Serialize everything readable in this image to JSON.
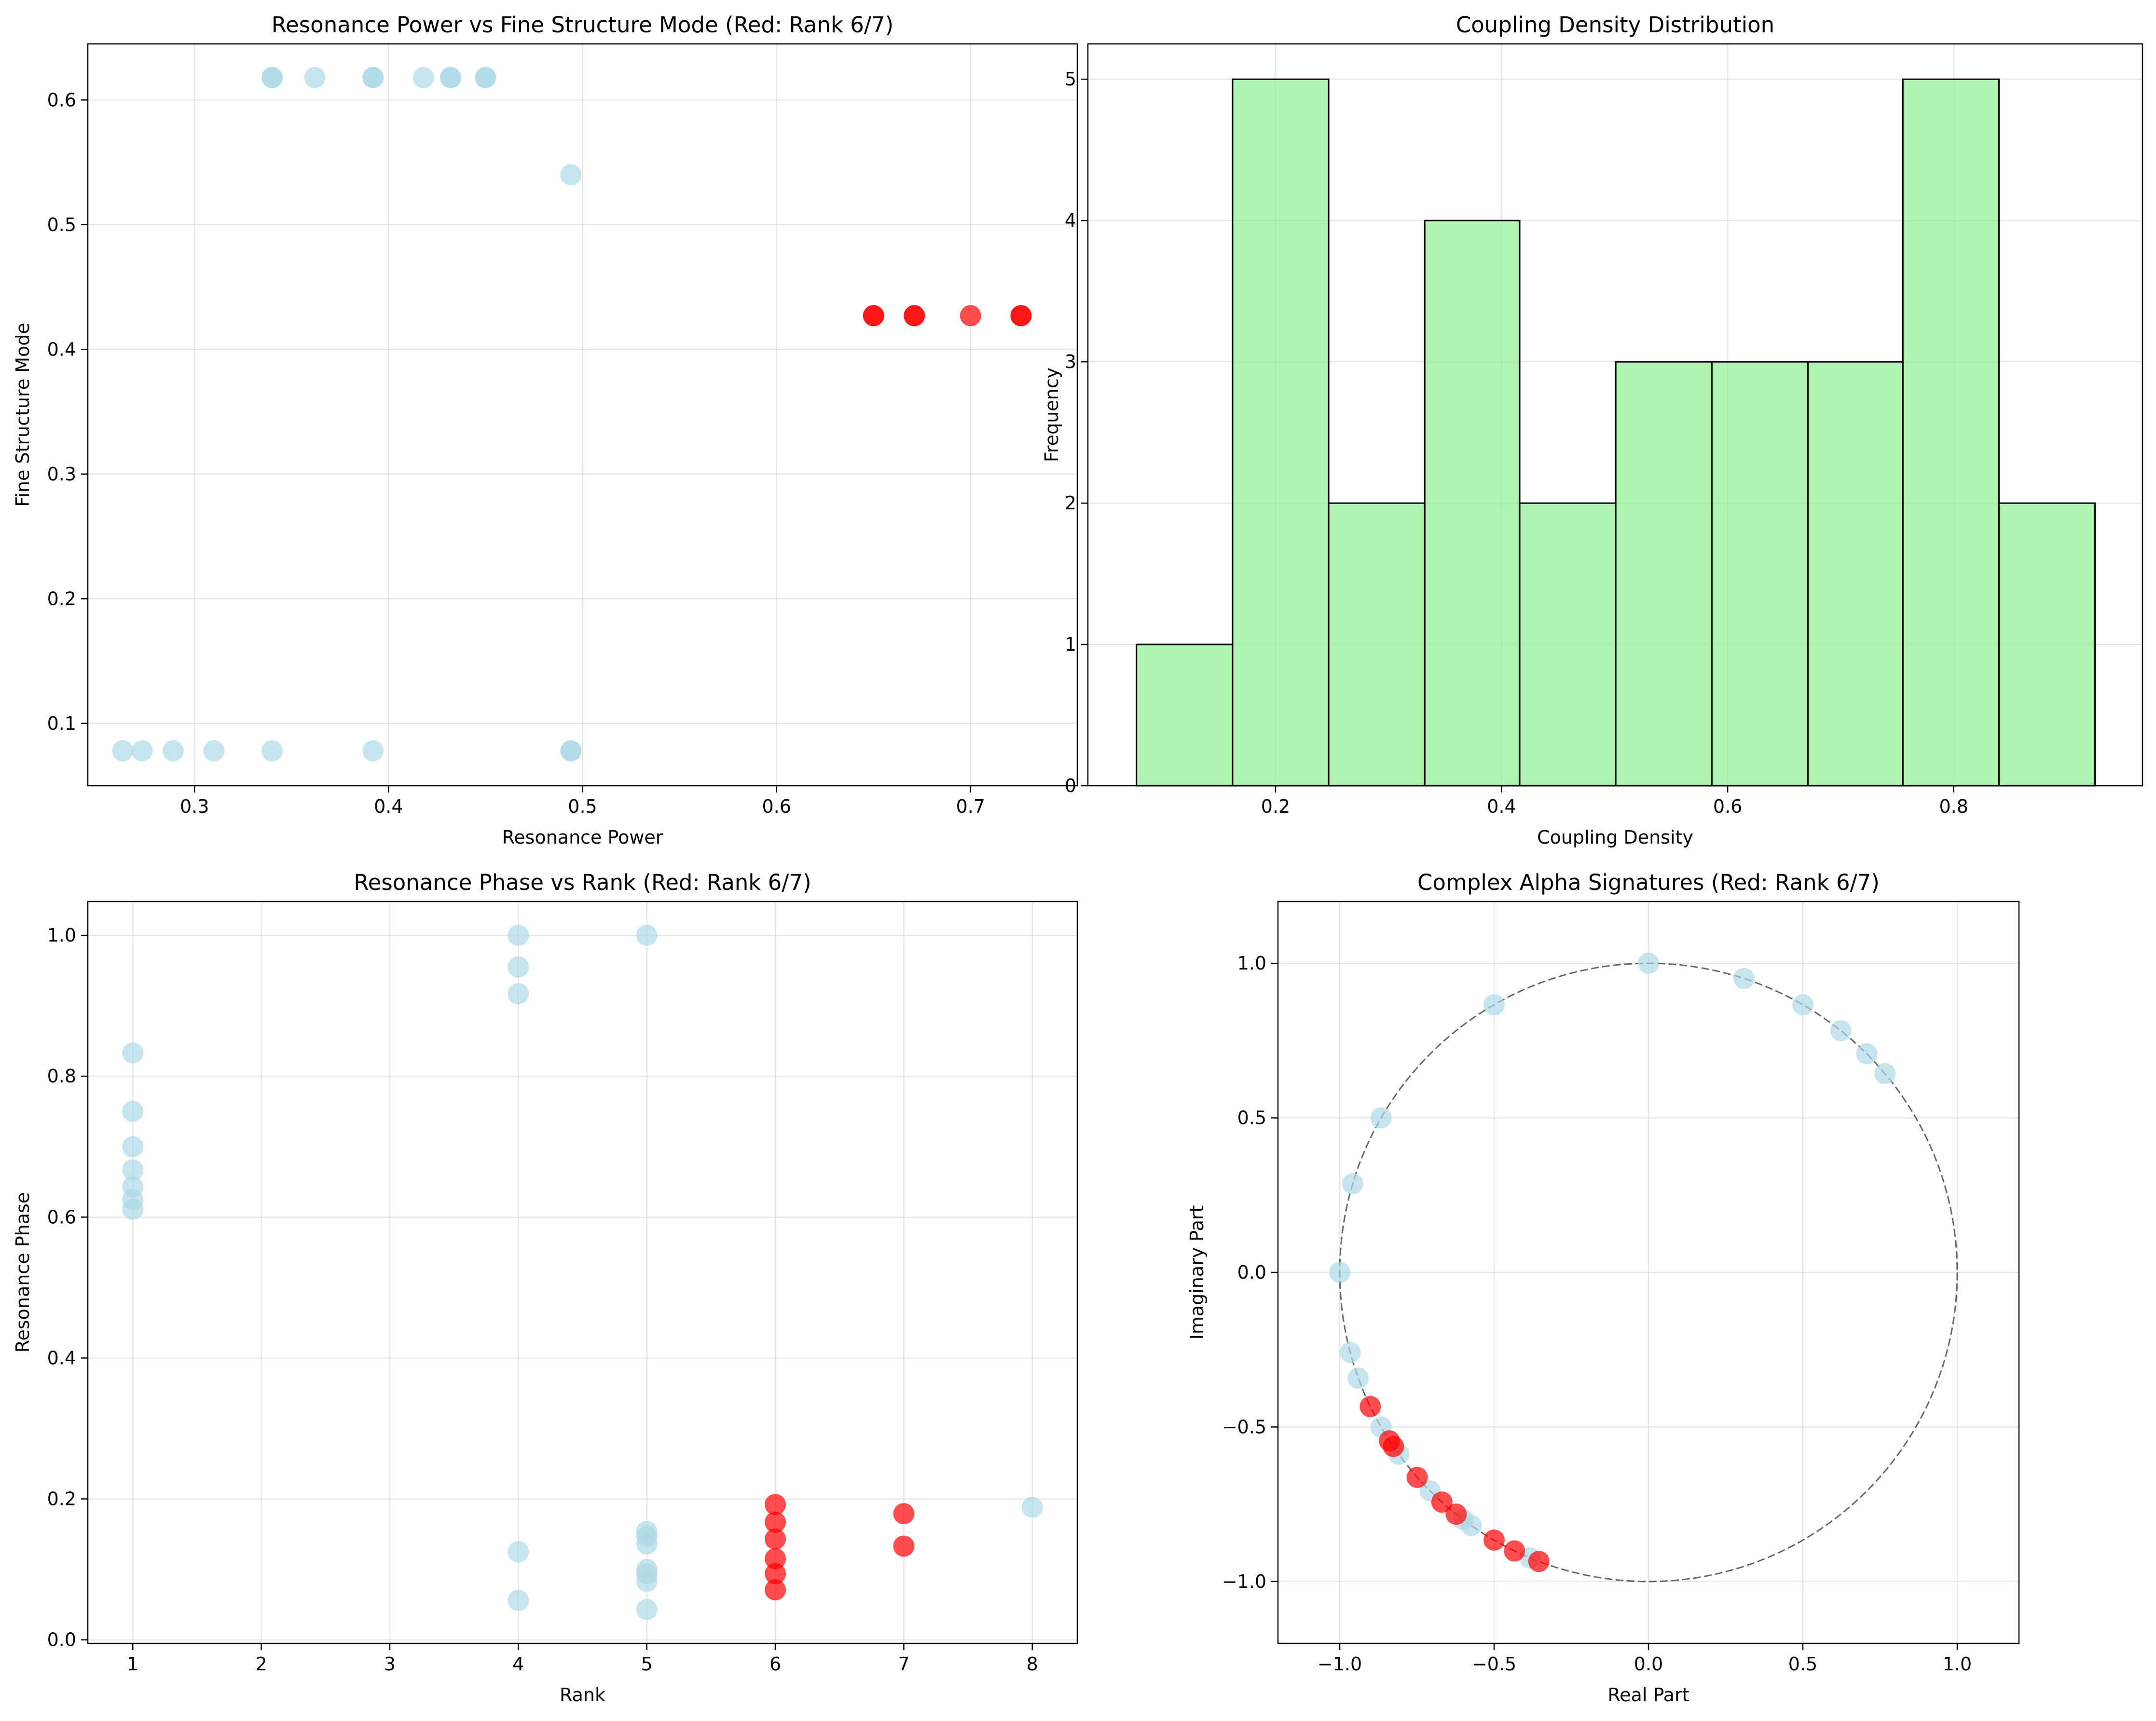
{
  "chart_data": [
    {
      "type": "scatter",
      "title": "Resonance Power vs Fine Structure Mode (Red: Rank 6/7)",
      "xlabel": "Resonance Power",
      "ylabel": "Fine Structure Mode",
      "xlim": [
        0.245,
        0.755
      ],
      "ylim": [
        0.05,
        0.645
      ],
      "xticks": [
        0.3,
        0.4,
        0.5,
        0.6,
        0.7
      ],
      "xtick_labels": [
        "0.3",
        "0.4",
        "0.5",
        "0.6",
        "0.7"
      ],
      "yticks": [
        0.1,
        0.2,
        0.3,
        0.4,
        0.5,
        0.6
      ],
      "ytick_labels": [
        "0.1",
        "0.2",
        "0.3",
        "0.4",
        "0.5",
        "0.6"
      ],
      "grid": true,
      "series": [
        {
          "color": "#add8e6",
          "points": [
            [
              0.34,
              0.618
            ],
            [
              0.34,
              0.618
            ],
            [
              0.362,
              0.618
            ],
            [
              0.392,
              0.618
            ],
            [
              0.392,
              0.618
            ],
            [
              0.418,
              0.618
            ],
            [
              0.432,
              0.618
            ],
            [
              0.432,
              0.618
            ],
            [
              0.45,
              0.618
            ],
            [
              0.45,
              0.618
            ],
            [
              0.494,
              0.54
            ],
            [
              0.263,
              0.078
            ],
            [
              0.273,
              0.078
            ],
            [
              0.289,
              0.078
            ],
            [
              0.31,
              0.078
            ],
            [
              0.34,
              0.078
            ],
            [
              0.392,
              0.078
            ],
            [
              0.494,
              0.078
            ],
            [
              0.494,
              0.078
            ]
          ]
        },
        {
          "color": "#ff0000",
          "points": [
            [
              0.65,
              0.427
            ],
            [
              0.65,
              0.427
            ],
            [
              0.671,
              0.427
            ],
            [
              0.671,
              0.427
            ],
            [
              0.7,
              0.427
            ],
            [
              0.726,
              0.427
            ],
            [
              0.726,
              0.427
            ]
          ]
        }
      ]
    },
    {
      "type": "bar",
      "title": "Coupling Density Distribution",
      "xlabel": "Coupling Density",
      "ylabel": "Frequency",
      "xlim": [
        0.034,
        0.967
      ],
      "ylim": [
        0,
        5.25
      ],
      "xticks": [
        0.2,
        0.4,
        0.6,
        0.8
      ],
      "xtick_labels": [
        "0.2",
        "0.4",
        "0.6",
        "0.8"
      ],
      "yticks": [
        0,
        1,
        2,
        3,
        4,
        5
      ],
      "ytick_labels": [
        "0",
        "1",
        "2",
        "3",
        "4",
        "5"
      ],
      "grid": true,
      "bin_edges": [
        0.077,
        0.162,
        0.247,
        0.332,
        0.416,
        0.501,
        0.586,
        0.671,
        0.755,
        0.84,
        0.925
      ],
      "values": [
        1,
        5,
        2,
        4,
        2,
        3,
        3,
        3,
        5,
        2
      ],
      "color": "#90ee90",
      "edgecolor": "#000000"
    },
    {
      "type": "scatter",
      "title": "Resonance Phase vs Rank (Red: Rank 6/7)",
      "xlabel": "Rank",
      "ylabel": "Resonance Phase",
      "xlim": [
        0.65,
        8.35
      ],
      "ylim": [
        -0.005,
        1.048
      ],
      "xticks": [
        1,
        2,
        3,
        4,
        5,
        6,
        7,
        8
      ],
      "xtick_labels": [
        "1",
        "2",
        "3",
        "4",
        "5",
        "6",
        "7",
        "8"
      ],
      "yticks": [
        0.0,
        0.2,
        0.4,
        0.6,
        0.8,
        1.0
      ],
      "ytick_labels": [
        "0.0",
        "0.2",
        "0.4",
        "0.6",
        "0.8",
        "1.0"
      ],
      "grid": true,
      "series": [
        {
          "color": "#add8e6",
          "points": [
            [
              1,
              0.833
            ],
            [
              1,
              0.75
            ],
            [
              1,
              0.7
            ],
            [
              1,
              0.667
            ],
            [
              1,
              0.643
            ],
            [
              1,
              0.625
            ],
            [
              1,
              0.611
            ],
            [
              4,
              1.0
            ],
            [
              4,
              0.955
            ],
            [
              4,
              0.917
            ],
            [
              4,
              0.125
            ],
            [
              4,
              0.056
            ],
            [
              5,
              1.0
            ],
            [
              5,
              0.154
            ],
            [
              5,
              0.147
            ],
            [
              5,
              0.136
            ],
            [
              5,
              0.1
            ],
            [
              5,
              0.094
            ],
            [
              5,
              0.083
            ],
            [
              5,
              0.043
            ],
            [
              8,
              0.188
            ]
          ]
        },
        {
          "color": "#ff0000",
          "points": [
            [
              6,
              0.192
            ],
            [
              6,
              0.167
            ],
            [
              6,
              0.143
            ],
            [
              6,
              0.115
            ],
            [
              6,
              0.094
            ],
            [
              6,
              0.071
            ],
            [
              7,
              0.179
            ],
            [
              7,
              0.133
            ]
          ]
        }
      ]
    },
    {
      "type": "scatter",
      "title": "Complex Alpha Signatures (Red: Rank 6/7)",
      "xlabel": "Real Part",
      "ylabel": "Imaginary Part",
      "xlim": [
        -1.2,
        1.2
      ],
      "ylim": [
        -1.2,
        1.2
      ],
      "xticks": [
        -1.0,
        -0.5,
        0.0,
        0.5,
        1.0
      ],
      "xtick_labels": [
        "−1.0",
        "−0.5",
        "0.0",
        "0.5",
        "1.0"
      ],
      "yticks": [
        -1.0,
        -0.5,
        0.0,
        0.5,
        1.0
      ],
      "ytick_labels": [
        "−1.0",
        "−0.5",
        "0.0",
        "0.5",
        "1.0"
      ],
      "grid": true,
      "unit_circle": true,
      "series": [
        {
          "color": "#add8e6",
          "points": [
            [
              0.0,
              1.0
            ],
            [
              0.309,
              0.951
            ],
            [
              0.5,
              0.866
            ],
            [
              0.623,
              0.782
            ],
            [
              0.707,
              0.707
            ],
            [
              0.766,
              0.643
            ],
            [
              -0.5,
              0.866
            ],
            [
              -0.866,
              0.5
            ],
            [
              -0.958,
              0.287
            ],
            [
              -1.0,
              0.0
            ],
            [
              -0.966,
              -0.259
            ],
            [
              -0.94,
              -0.342
            ],
            [
              -0.866,
              -0.5
            ],
            [
              -0.809,
              -0.588
            ],
            [
              -0.707,
              -0.707
            ],
            [
              -0.6,
              -0.8
            ],
            [
              -0.574,
              -0.819
            ],
            [
              -0.383,
              -0.924
            ]
          ]
        },
        {
          "color": "#ff0000",
          "points": [
            [
              -0.901,
              -0.434
            ],
            [
              -0.839,
              -0.545
            ],
            [
              -0.826,
              -0.563
            ],
            [
              -0.749,
              -0.663
            ],
            [
              -0.669,
              -0.743
            ],
            [
              -0.623,
              -0.782
            ],
            [
              -0.5,
              -0.866
            ],
            [
              -0.434,
              -0.901
            ],
            [
              -0.355,
              -0.935
            ]
          ]
        }
      ]
    }
  ]
}
